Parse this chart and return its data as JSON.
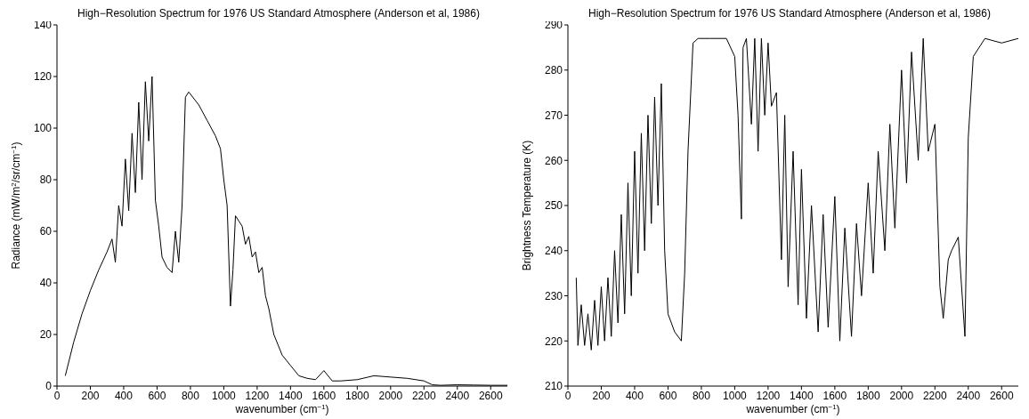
{
  "chart_data": [
    {
      "type": "line",
      "title": "High−Resolution Spectrum for 1976 US Standard Atmosphere (Anderson et al, 1986)",
      "xlabel": "wavenumber (cm$^{−1}$)",
      "ylabel": "Radiance (mW/m$^{2}$/sr/cm$^{−1}$)",
      "xlim": [
        0,
        2700
      ],
      "xticks": [
        0,
        200,
        400,
        600,
        800,
        1000,
        1200,
        1400,
        1600,
        1800,
        2000,
        2200,
        2400,
        2600
      ],
      "ylim": [
        0,
        140
      ],
      "yticks": [
        0,
        20,
        40,
        60,
        80,
        100,
        120,
        140
      ],
      "series": [
        {
          "color": "#000000",
          "x": [
            50,
            100,
            150,
            200,
            250,
            300,
            330,
            350,
            370,
            390,
            410,
            430,
            450,
            470,
            490,
            510,
            530,
            550,
            570,
            590,
            610,
            630,
            660,
            690,
            710,
            730,
            750,
            770,
            790,
            850,
            900,
            950,
            980,
            1000,
            1020,
            1040,
            1055,
            1070,
            1090,
            1110,
            1130,
            1150,
            1170,
            1190,
            1210,
            1230,
            1250,
            1270,
            1300,
            1350,
            1400,
            1450,
            1500,
            1550,
            1600,
            1650,
            1700,
            1800,
            1900,
            2000,
            2100,
            2200,
            2250,
            2300,
            2400,
            2500,
            2600,
            2700
          ],
          "values": [
            4,
            17,
            28,
            37,
            45,
            52,
            57,
            48,
            70,
            62,
            88,
            68,
            98,
            75,
            110,
            80,
            118,
            95,
            120,
            72,
            62,
            50,
            46,
            44,
            60,
            48,
            70,
            112,
            114,
            109,
            103,
            97,
            92,
            80,
            70,
            31,
            45,
            66,
            64,
            62,
            55,
            58,
            50,
            52,
            44,
            46,
            35,
            30,
            20,
            12,
            8,
            4,
            3,
            2.5,
            6,
            2,
            2,
            2.5,
            4,
            3.5,
            3,
            2,
            0.5,
            0.3,
            0.5,
            0.4,
            0.3,
            0.3
          ]
        }
      ]
    },
    {
      "type": "line",
      "title": "High−Resolution Spectrum for 1976 US Standard Atmosphere (Anderson et al, 1986)",
      "xlabel": "wavenumber (cm$^{−1}$)",
      "ylabel": "Brightness Temperature (K)",
      "xlim": [
        0,
        2700
      ],
      "xticks": [
        0,
        200,
        400,
        600,
        800,
        1000,
        1200,
        1400,
        1600,
        1800,
        2000,
        2200,
        2400,
        2600
      ],
      "ylim": [
        210,
        290
      ],
      "yticks": [
        210,
        220,
        230,
        240,
        250,
        260,
        270,
        280,
        290
      ],
      "series": [
        {
          "color": "#000000",
          "x": [
            50,
            60,
            80,
            100,
            120,
            140,
            160,
            180,
            200,
            220,
            240,
            260,
            280,
            300,
            320,
            340,
            360,
            380,
            400,
            420,
            440,
            460,
            480,
            500,
            520,
            540,
            560,
            580,
            600,
            640,
            680,
            700,
            720,
            750,
            780,
            850,
            950,
            1000,
            1020,
            1040,
            1050,
            1070,
            1100,
            1120,
            1140,
            1160,
            1180,
            1200,
            1220,
            1250,
            1280,
            1300,
            1320,
            1350,
            1380,
            1400,
            1430,
            1460,
            1500,
            1530,
            1560,
            1600,
            1630,
            1660,
            1700,
            1730,
            1760,
            1800,
            1830,
            1860,
            1900,
            1930,
            1960,
            2000,
            2030,
            2060,
            2100,
            2130,
            2160,
            2200,
            2230,
            2250,
            2280,
            2300,
            2340,
            2380,
            2400,
            2430,
            2500,
            2600,
            2700
          ],
          "values": [
            234,
            219,
            228,
            219,
            226,
            218,
            229,
            219,
            232,
            220,
            234,
            221,
            240,
            224,
            248,
            226,
            255,
            230,
            262,
            235,
            266,
            240,
            270,
            246,
            274,
            250,
            277,
            240,
            226,
            222,
            220,
            235,
            262,
            286,
            287,
            287,
            287,
            283,
            270,
            247,
            285,
            287,
            268,
            287,
            262,
            287,
            270,
            286,
            272,
            275,
            238,
            270,
            232,
            262,
            228,
            258,
            225,
            250,
            222,
            248,
            223,
            252,
            220,
            245,
            221,
            246,
            230,
            255,
            235,
            262,
            240,
            268,
            245,
            280,
            255,
            284,
            260,
            287,
            262,
            268,
            232,
            225,
            238,
            240,
            243,
            221,
            265,
            283,
            287,
            286,
            287
          ]
        }
      ]
    }
  ]
}
